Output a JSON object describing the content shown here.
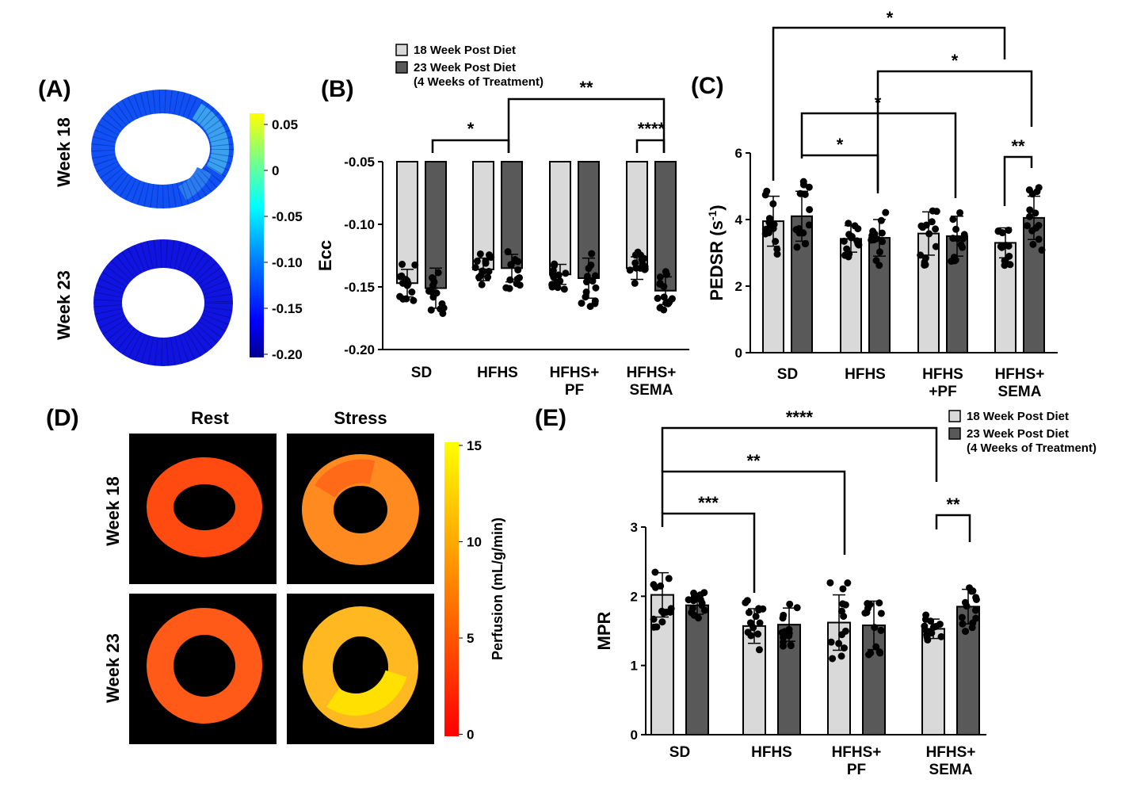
{
  "panel_labels": [
    "(A)",
    "(B)",
    "(C)",
    "(D)",
    "(E)"
  ],
  "colors": {
    "light": "#d9d9d9",
    "dark": "#595959",
    "point": "#000000"
  },
  "panel_a": {
    "rows": [
      "Week 18",
      "Week 23"
    ],
    "colorbar_ticks": [
      "0.05",
      "0",
      "-0.05",
      "-0.10",
      "-0.15",
      "-0.20"
    ]
  },
  "panel_d": {
    "columns": [
      "Rest",
      "Stress"
    ],
    "rows": [
      "Week 18",
      "Week 23"
    ],
    "colorbar_ticks": [
      "15",
      "10",
      "5",
      "0"
    ],
    "colorbar_label": "Perfusion (mL/g/min)"
  },
  "chart_data": [
    {
      "panel": "B",
      "type": "bar",
      "categories": [
        "SD",
        "HFHS",
        "HFHS+\nPF",
        "HFHS+\nSEMA"
      ],
      "ylabel": "Ecc",
      "ylim": [
        -0.2,
        -0.05
      ],
      "yticks": [
        "-0.05",
        "-0.10",
        "-0.15",
        "-0.20"
      ],
      "legend": [
        "18 Week Post Diet",
        "23 Week Post Diet\n(4 Weeks of Treatment)"
      ],
      "legend_position": "top-left",
      "series": [
        {
          "name": "18 Week Post Diet",
          "values": [
            -0.147,
            -0.136,
            -0.14,
            -0.135
          ],
          "sd": [
            0.011,
            0.009,
            0.008,
            0.009
          ]
        },
        {
          "name": "23 Week Post Diet (4 Weeks of Treatment)",
          "values": [
            -0.151,
            -0.135,
            -0.143,
            -0.153
          ],
          "sd": [
            0.016,
            0.011,
            0.016,
            0.011
          ]
        }
      ],
      "significance": [
        {
          "label": "*",
          "from": "SD 23 Week",
          "to": "HFHS 23 Week"
        },
        {
          "label": "**",
          "from": "HFHS 23 Week",
          "to": "HFHS+SEMA 23 Week"
        },
        {
          "label": "****",
          "from": "HFHS+SEMA 18 Week",
          "to": "HFHS+SEMA 23 Week"
        }
      ]
    },
    {
      "panel": "C",
      "type": "bar",
      "categories": [
        "SD",
        "HFHS",
        "HFHS\n+PF",
        "HFHS+\nSEMA"
      ],
      "ylabel": "PEDSR (s-1)",
      "ylim": [
        0,
        6
      ],
      "yticks": [
        "0",
        "2",
        "4",
        "6"
      ],
      "series": [
        {
          "name": "18 Week Post Diet",
          "values": [
            3.95,
            3.42,
            3.58,
            3.3
          ],
          "sd": [
            0.75,
            0.4,
            0.65,
            0.45
          ]
        },
        {
          "name": "23 Week Post Diet (4 Weeks of Treatment)",
          "values": [
            4.1,
            3.45,
            3.5,
            4.05
          ],
          "sd": [
            0.75,
            0.55,
            0.6,
            0.65
          ]
        }
      ],
      "significance": [
        {
          "label": "*",
          "from": "SD 23 Week",
          "to": "HFHS 23 Week"
        },
        {
          "label": "*",
          "from": "SD 23 Week",
          "to": "HFHS+PF 23 Week"
        },
        {
          "label": "**",
          "from": "HFHS+SEMA 18 Week",
          "to": "HFHS+SEMA 23 Week"
        },
        {
          "label": "*",
          "from": "HFHS 23 Week",
          "to": "HFHS+SEMA 23 Week"
        },
        {
          "label": "*",
          "from": "SD 18 Week",
          "to": "HFHS+SEMA 18 Week"
        }
      ]
    },
    {
      "panel": "E",
      "type": "bar",
      "categories": [
        "SD",
        "HFHS",
        "HFHS+\nPF",
        "HFHS+\nSEMA"
      ],
      "ylabel": "MPR",
      "ylim": [
        0,
        3
      ],
      "yticks": [
        "0",
        "1",
        "2",
        "3"
      ],
      "legend": [
        "18 Week Post Diet",
        "23 Week Post Diet\n(4 Weeks of Treatment)"
      ],
      "legend_position": "top-right",
      "series": [
        {
          "name": "18 Week Post Diet",
          "values": [
            2.02,
            1.57,
            1.62,
            1.53
          ],
          "sd": [
            0.32,
            0.25,
            0.4,
            0.14
          ]
        },
        {
          "name": "23 Week Post Diet (4 Weeks of Treatment)",
          "values": [
            1.87,
            1.59,
            1.58,
            1.85
          ],
          "sd": [
            0.13,
            0.24,
            0.35,
            0.25
          ]
        }
      ],
      "significance": [
        {
          "label": "***",
          "from": "SD 18 Week",
          "to": "HFHS 18 Week"
        },
        {
          "label": "**",
          "from": "SD 18 Week",
          "to": "HFHS+PF 18 Week"
        },
        {
          "label": "****",
          "from": "SD 18 Week",
          "to": "HFHS+SEMA 18 Week"
        },
        {
          "label": "**",
          "from": "HFHS+SEMA 18 Week",
          "to": "HFHS+SEMA 23 Week"
        }
      ]
    }
  ]
}
